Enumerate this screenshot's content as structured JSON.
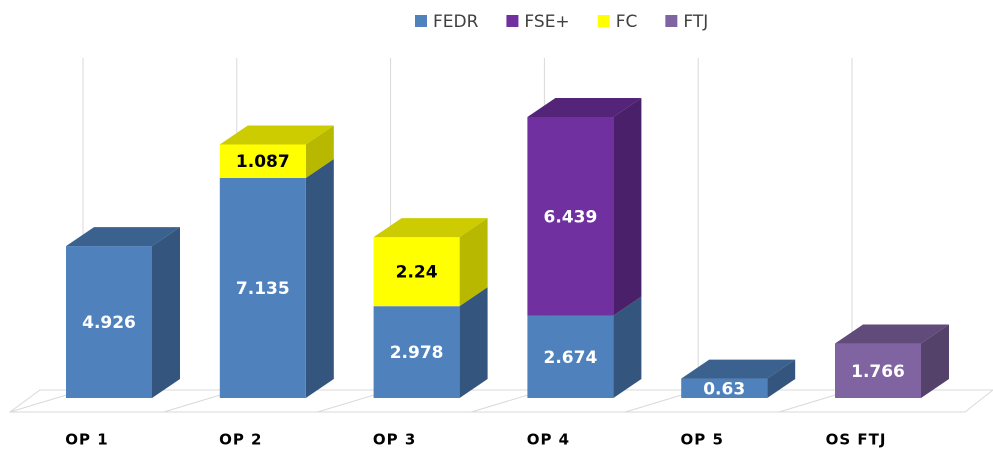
{
  "chart_data": {
    "type": "bar3d_stacked",
    "categories": [
      "OP 1",
      "OP 2",
      "OP 3",
      "OP 4",
      "OP 5",
      "OS FTJ"
    ],
    "series": [
      {
        "name": "FEDR",
        "color": "#4f81bd",
        "values": [
          4.926,
          7.135,
          2.978,
          2.674,
          0.63,
          null
        ]
      },
      {
        "name": "FSE+",
        "color": "#7030a0",
        "values": [
          null,
          null,
          null,
          6.439,
          null,
          null
        ]
      },
      {
        "name": "FC",
        "color": "#ffff00",
        "values": [
          null,
          1.087,
          2.24,
          null,
          null,
          null
        ]
      },
      {
        "name": "FTJ",
        "color": "#8064a2",
        "values": [
          null,
          null,
          null,
          null,
          null,
          1.766
        ]
      }
    ],
    "legend": "top",
    "grid": true
  }
}
